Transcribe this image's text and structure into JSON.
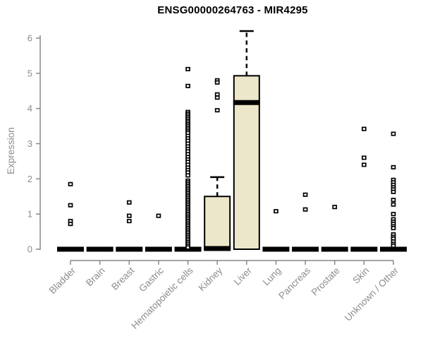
{
  "colors": {
    "background": "#ffffff",
    "box_fill": "#ece7ca",
    "box_border": "#000000",
    "point_fill": "#ffffff",
    "point_border": "#000000",
    "axis": "#898989",
    "tick_text": "#8c8c8c",
    "title_text": "#000000"
  },
  "chart_data": {
    "type": "boxplot",
    "title": "ENSG00000264763 - MIR4295",
    "xlabel": "",
    "ylabel": "Expression",
    "ylim": [
      0,
      6
    ],
    "yticks": [
      0,
      1,
      2,
      3,
      4,
      5,
      6
    ],
    "grid": false,
    "legend_position": "none",
    "categories": [
      "Bladder",
      "Brain",
      "Breast",
      "Gastric",
      "Hematopoietic cells",
      "Kidney",
      "Liver",
      "Lung",
      "Pancreas",
      "Prostate",
      "Skin",
      "Unknown / Other"
    ],
    "series": [
      {
        "label": "Bladder",
        "box": {
          "q1": 0,
          "median": 0,
          "q3": 0,
          "whisker_low": 0,
          "whisker_high": 0
        },
        "points": [
          1.85,
          1.25,
          0.8,
          0.72
        ]
      },
      {
        "label": "Brain",
        "box": {
          "q1": 0,
          "median": 0,
          "q3": 0,
          "whisker_low": 0,
          "whisker_high": 0
        },
        "points": []
      },
      {
        "label": "Breast",
        "box": {
          "q1": 0,
          "median": 0,
          "q3": 0,
          "whisker_low": 0,
          "whisker_high": 0
        },
        "points": [
          1.33,
          0.95,
          0.8
        ]
      },
      {
        "label": "Gastric",
        "box": {
          "q1": 0,
          "median": 0,
          "q3": 0,
          "whisker_low": 0,
          "whisker_high": 0
        },
        "points": [
          0.95
        ]
      },
      {
        "label": "Hematopoietic cells",
        "box": {
          "q1": 0,
          "median": 0,
          "q3": 0,
          "whisker_low": 0,
          "whisker_high": 0
        },
        "points": [
          5.12,
          4.64,
          3.9,
          3.85,
          3.8,
          3.75,
          3.7,
          3.65,
          3.6,
          3.55,
          3.5,
          3.45,
          3.4,
          3.35,
          3.3,
          3.22,
          3.15,
          3.08,
          3.0,
          2.92,
          2.85,
          2.78,
          2.7,
          2.62,
          2.55,
          2.48,
          2.4,
          2.32,
          2.25,
          2.18,
          2.1,
          1.95,
          1.9,
          1.85,
          1.8,
          1.75,
          1.7,
          1.65,
          1.6,
          1.55,
          1.5,
          1.45,
          1.4,
          1.35,
          1.3,
          1.25,
          1.2,
          1.15,
          1.1,
          1.05,
          1.0,
          0.95,
          0.9,
          0.85,
          0.8,
          0.75,
          0.7,
          0.65,
          0.6,
          0.55,
          0.5,
          0.45,
          0.4,
          0.35,
          0.3,
          0.25,
          0.2,
          0.15,
          0.1,
          0.05
        ]
      },
      {
        "label": "Kidney",
        "box": {
          "q1": 0,
          "median": 0.02,
          "q3": 1.5,
          "whisker_low": 0,
          "whisker_high": 2.05
        },
        "points": [
          4.8,
          4.74,
          4.4,
          4.31,
          3.95
        ]
      },
      {
        "label": "Liver",
        "box": {
          "q1": 0,
          "median": 4.17,
          "q3": 4.93,
          "whisker_low": 0,
          "whisker_high": 6.2
        },
        "points": []
      },
      {
        "label": "Lung",
        "box": {
          "q1": 0,
          "median": 0,
          "q3": 0,
          "whisker_low": 0,
          "whisker_high": 0
        },
        "points": [
          1.08
        ]
      },
      {
        "label": "Pancreas",
        "box": {
          "q1": 0,
          "median": 0,
          "q3": 0,
          "whisker_low": 0,
          "whisker_high": 0
        },
        "points": [
          1.55,
          1.13
        ]
      },
      {
        "label": "Prostate",
        "box": {
          "q1": 0,
          "median": 0,
          "q3": 0,
          "whisker_low": 0,
          "whisker_high": 0
        },
        "points": [
          1.2
        ]
      },
      {
        "label": "Skin",
        "box": {
          "q1": 0,
          "median": 0,
          "q3": 0,
          "whisker_low": 0,
          "whisker_high": 0
        },
        "points": [
          3.42,
          2.6,
          2.4
        ]
      },
      {
        "label": "Unknown / Other",
        "box": {
          "q1": 0,
          "median": 0,
          "q3": 0,
          "whisker_low": 0,
          "whisker_high": 0
        },
        "points": [
          3.28,
          2.33,
          1.97,
          1.9,
          1.83,
          1.76,
          1.7,
          1.63,
          1.4,
          1.27,
          1.0,
          0.85,
          0.78,
          0.72,
          0.65,
          0.6,
          0.42,
          0.35,
          0.3,
          0.22,
          0.15,
          0.1
        ]
      }
    ]
  }
}
